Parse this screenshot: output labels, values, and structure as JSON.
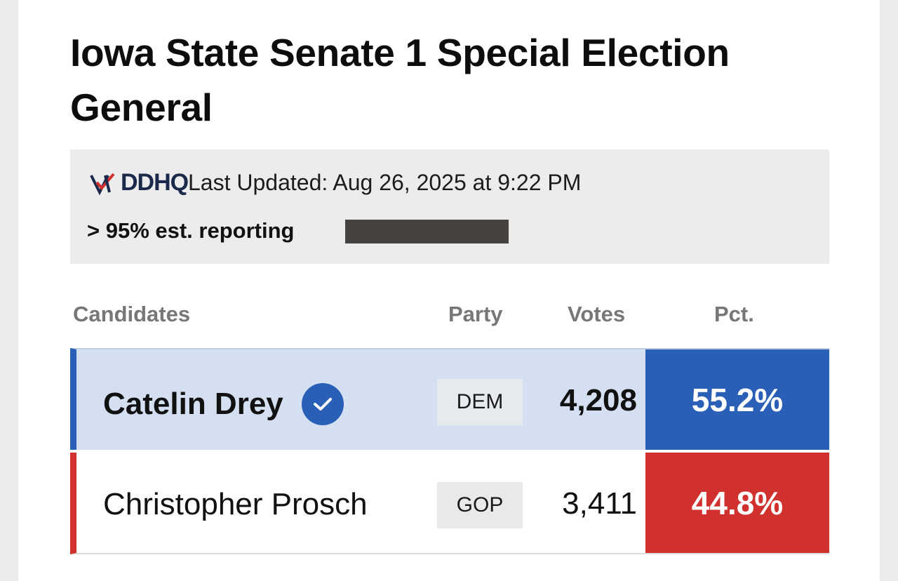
{
  "race": {
    "title": "Iowa State Senate 1 Special Election General"
  },
  "status": {
    "logo_text": "DDHQ",
    "last_updated": "Last Updated: Aug 26, 2025 at 9:22 PM",
    "reporting_label": "> 95% est. reporting",
    "reporting_fraction": 1.0
  },
  "table": {
    "headers": {
      "candidates": "Candidates",
      "party": "Party",
      "votes": "Votes",
      "pct": "Pct."
    },
    "rows": [
      {
        "name": "Catelin Drey",
        "winner": true,
        "party": "DEM",
        "votes": "4,208",
        "pct": "55.2%",
        "color": "#2a5fb8"
      },
      {
        "name": "Christopher Prosch",
        "winner": false,
        "party": "GOP",
        "votes": "3,411",
        "pct": "44.8%",
        "color": "#d0302e"
      }
    ]
  },
  "icons": {
    "winner_check": "check-circle-icon",
    "logo_mark": "checkmark-logo-icon"
  }
}
